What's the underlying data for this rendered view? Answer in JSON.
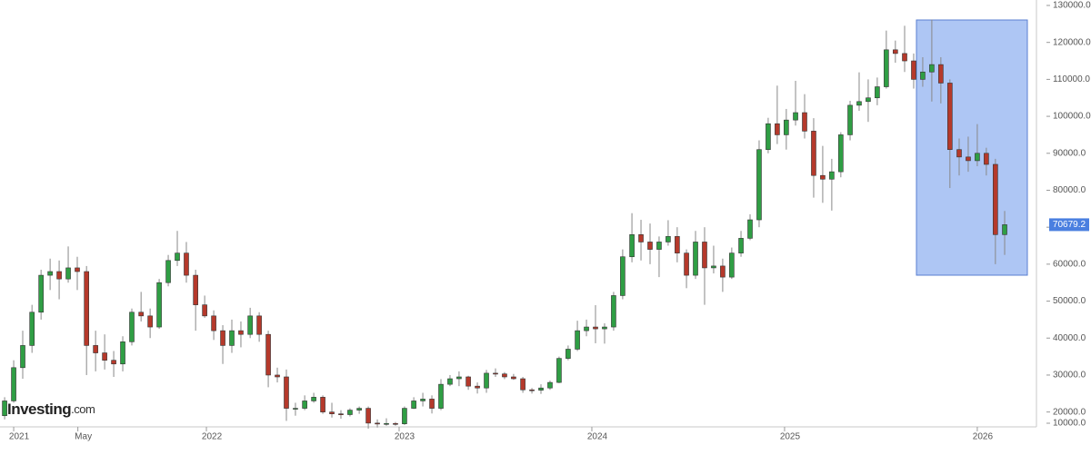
{
  "chart_data": {
    "type": "candlestick",
    "x": [
      2020.953,
      2021.0,
      2021.047,
      2021.095,
      2021.142,
      2021.189,
      2021.236,
      2021.283,
      2021.33,
      2021.378,
      2021.425,
      2021.472,
      2021.519,
      2021.566,
      2021.613,
      2021.661,
      2021.708,
      2021.755,
      2021.802,
      2021.849,
      2021.896,
      2021.944,
      2021.991,
      2022.038,
      2022.085,
      2022.132,
      2022.179,
      2022.227,
      2022.274,
      2022.321,
      2022.368,
      2022.415,
      2022.462,
      2022.51,
      2022.557,
      2022.604,
      2022.651,
      2022.698,
      2022.745,
      2022.793,
      2022.84,
      2022.887,
      2022.934,
      2022.981,
      2023.028,
      2023.076,
      2023.123,
      2023.17,
      2023.217,
      2023.264,
      2023.311,
      2023.359,
      2023.406,
      2023.453,
      2023.5,
      2023.547,
      2023.594,
      2023.642,
      2023.689,
      2023.736,
      2023.783,
      2023.83,
      2023.877,
      2023.925,
      2023.972,
      2024.019,
      2024.066,
      2024.113,
      2024.16,
      2024.208,
      2024.255,
      2024.302,
      2024.349,
      2024.396,
      2024.443,
      2024.491,
      2024.538,
      2024.585,
      2024.632,
      2024.679,
      2024.726,
      2024.774,
      2024.821,
      2024.868,
      2024.915,
      2024.962,
      2025.009,
      2025.057,
      2025.104,
      2025.151,
      2025.198,
      2025.245,
      2025.292,
      2025.34,
      2025.387,
      2025.434,
      2025.481,
      2025.528,
      2025.575,
      2025.623,
      2025.67,
      2025.717,
      2025.764,
      2025.811,
      2025.858,
      2025.906,
      2025.953,
      2026.0,
      2026.047,
      2026.094,
      2026.142
    ],
    "open": [
      19000,
      23000,
      32000,
      38000,
      47000,
      57000,
      58000,
      56000,
      59000,
      58000,
      38000,
      36000,
      34000,
      33000,
      39000,
      47000,
      46000,
      43000,
      55000,
      61000,
      63000,
      57000,
      49000,
      46000,
      42000,
      38000,
      42000,
      41000,
      46000,
      41000,
      30000,
      29500,
      21000,
      21000,
      23000,
      24000,
      20000,
      19500,
      19300,
      20500,
      21000,
      17000,
      16800,
      16900,
      16800,
      21000,
      23000,
      23500,
      21000,
      27500,
      29000,
      29500,
      27000,
      26500,
      30500,
      30300,
      29500,
      29000,
      26000,
      25900,
      26500,
      28000,
      34500,
      37000,
      42000,
      43000,
      42500,
      43000,
      51500,
      62000,
      68000,
      66000,
      64000,
      66000,
      67500,
      63000,
      57000,
      66000,
      59000,
      59500,
      56500,
      63000,
      67000,
      72000,
      91000,
      98000,
      95000,
      99000,
      101000,
      96000,
      84000,
      83000,
      85000,
      95000,
      103000,
      104000,
      105000,
      108000,
      118000,
      117000,
      115000,
      110000,
      112000,
      114000,
      109000,
      91000,
      89000,
      88000,
      90000,
      87000,
      68000
    ],
    "high": [
      24000,
      34000,
      42000,
      49000,
      58500,
      61500,
      61000,
      64800,
      62000,
      59500,
      42000,
      41000,
      36500,
      40500,
      48000,
      52500,
      48000,
      56000,
      62500,
      69000,
      66000,
      58500,
      51500,
      47500,
      43500,
      45000,
      44500,
      48200,
      47000,
      42000,
      32000,
      31500,
      22500,
      24500,
      25200,
      24500,
      22500,
      20500,
      21000,
      21500,
      21500,
      18000,
      18300,
      17300,
      21500,
      24000,
      25200,
      24500,
      28900,
      30000,
      31000,
      29800,
      28000,
      31400,
      31800,
      30800,
      30300,
      29500,
      26500,
      27500,
      28500,
      35000,
      38000,
      44700,
      45000,
      48900,
      44000,
      52500,
      64000,
      73800,
      72000,
      71000,
      67500,
      71900,
      70000,
      64000,
      69000,
      70000,
      65000,
      61500,
      64500,
      69000,
      73500,
      93500,
      99600,
      108300,
      102000,
      109600,
      106000,
      99500,
      92000,
      88500,
      95700,
      104200,
      111900,
      110000,
      110500,
      123200,
      120500,
      124500,
      117000,
      116000,
      126200,
      116000,
      110000,
      94000,
      94500,
      97900,
      91500,
      88500,
      74400
    ],
    "low": [
      18000,
      22500,
      29000,
      36000,
      45000,
      53000,
      50500,
      55000,
      53000,
      30000,
      31000,
      31500,
      29500,
      31000,
      38000,
      44500,
      40000,
      42500,
      54000,
      59500,
      55000,
      42000,
      45500,
      39500,
      33000,
      36000,
      37500,
      40000,
      39000,
      26700,
      28000,
      17600,
      19000,
      20500,
      22500,
      19500,
      18500,
      18200,
      18800,
      19500,
      15500,
      15800,
      16300,
      16300,
      16500,
      20800,
      21500,
      19600,
      20500,
      27000,
      27000,
      26000,
      25000,
      25200,
      29500,
      28900,
      28700,
      25200,
      25000,
      24900,
      26000,
      27800,
      34000,
      36500,
      40500,
      38600,
      38500,
      42000,
      50500,
      60500,
      61000,
      60000,
      56500,
      65000,
      60500,
      53500,
      56000,
      49000,
      57500,
      52500,
      56000,
      62000,
      66500,
      70000,
      90000,
      92500,
      91000,
      97500,
      94000,
      78000,
      76600,
      74500,
      83500,
      93500,
      101500,
      98500,
      103000,
      107500,
      114500,
      112000,
      107500,
      108000,
      104000,
      103500,
      80600,
      84000,
      85000,
      86500,
      84000,
      60000,
      62500
    ],
    "close": [
      23000,
      32000,
      38000,
      47000,
      57000,
      58000,
      56000,
      59000,
      58000,
      38000,
      36000,
      34000,
      33000,
      39000,
      47000,
      46000,
      43000,
      55000,
      61000,
      63000,
      57000,
      49000,
      46000,
      42000,
      38000,
      42000,
      41000,
      46000,
      41000,
      30000,
      29500,
      21000,
      21000,
      23000,
      24000,
      20000,
      19500,
      19300,
      20500,
      21000,
      17000,
      16800,
      16900,
      16800,
      21000,
      23000,
      23500,
      21000,
      27500,
      29000,
      29500,
      27000,
      26500,
      30500,
      30300,
      29500,
      29000,
      26000,
      25900,
      26500,
      28000,
      34500,
      37000,
      42000,
      43000,
      42500,
      43000,
      51500,
      62000,
      68000,
      66000,
      64000,
      66000,
      67500,
      63000,
      57000,
      66000,
      59000,
      59500,
      56500,
      63000,
      67000,
      72000,
      91000,
      98000,
      95000,
      99000,
      101000,
      96000,
      84000,
      83000,
      85000,
      95000,
      103000,
      104000,
      105000,
      108000,
      118000,
      117000,
      115000,
      110000,
      112000,
      114000,
      109000,
      91000,
      89000,
      88000,
      90000,
      87000,
      68000,
      70679.2
    ],
    "up_color": "#2f9e44",
    "down_color": "#b5392b",
    "xlim": [
      2020.929,
      2026.307
    ],
    "xticks": [
      2021,
      {
        "value": 2021.333,
        "label": "May"
      },
      2022,
      2023,
      2024,
      2025,
      2026
    ],
    "ylim": [
      15000,
      130000
    ],
    "yticks": [
      {
        "value": 10000,
        "label": "10000.0"
      },
      {
        "value": 20000,
        "label": "20000.0"
      },
      {
        "value": 30000,
        "label": "30000.0"
      },
      {
        "value": 40000,
        "label": "40000.0"
      },
      {
        "value": 50000,
        "label": "50000.0"
      },
      {
        "value": 60000,
        "label": "60000.0"
      },
      {
        "value": 70000,
        "label": "70000.0"
      },
      {
        "value": 80000,
        "label": "80000.0"
      },
      {
        "value": 90000,
        "label": "90000.0"
      },
      {
        "value": 100000,
        "label": "100000.0"
      },
      {
        "value": 110000,
        "label": "110000.0"
      },
      {
        "value": 120000,
        "label": "120000.0"
      },
      {
        "value": 130000,
        "label": "130000.0"
      }
    ],
    "grid": false,
    "last_price": 70679.2,
    "logo": {
      "name": "Investing",
      "suffix": ".com"
    }
  }
}
